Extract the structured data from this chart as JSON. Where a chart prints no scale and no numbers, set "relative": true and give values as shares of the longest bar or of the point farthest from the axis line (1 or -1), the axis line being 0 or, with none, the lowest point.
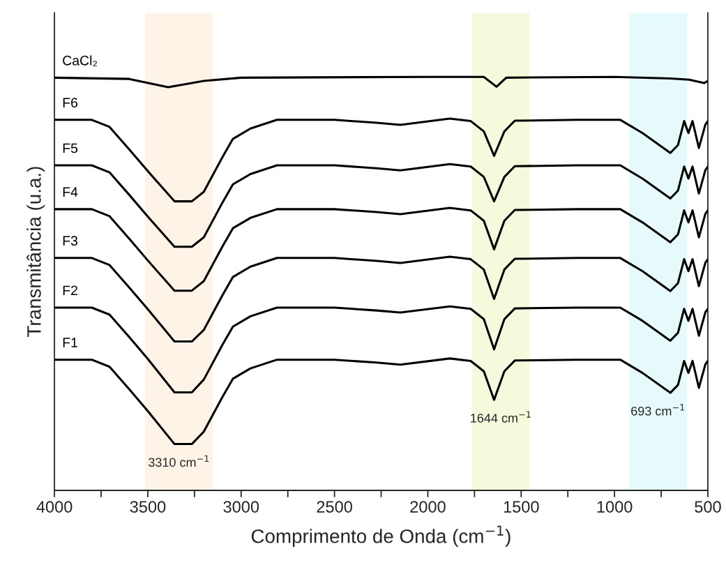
{
  "chart_data": {
    "type": "line",
    "relative": true,
    "xlabel": "Comprimento de Onda (cm$^{−1}$)",
    "ylabel": "Transmitância (u.a.)",
    "xlim": [
      4000,
      500
    ],
    "xticks": [
      4000,
      {
        "value": 3750,
        "label": null
      },
      3500,
      {
        "value": 3250,
        "label": null
      },
      3000,
      {
        "value": 2750,
        "label": null
      },
      2500,
      {
        "value": 2250,
        "label": null
      },
      2000,
      {
        "value": 1750,
        "label": null
      },
      1500,
      {
        "value": 1250,
        "label": null
      },
      1000,
      {
        "value": 750,
        "label": null
      },
      500
    ],
    "legend": false,
    "grid": false,
    "marker": "none",
    "line_style": "solid",
    "tick_labels": "x",
    "bands": [
      {
        "axis": "x",
        "from": 3514,
        "to": 3152,
        "color": "#fdf3e7",
        "label": "3310 cm$^{−1}$"
      },
      {
        "axis": "x",
        "from": 1762,
        "to": 1456,
        "color": "#f3fbdc",
        "label": "1644 cm$^{−1}$"
      },
      {
        "axis": "x",
        "from": 922,
        "to": 612,
        "color": "#e6fafb",
        "label": "693 cm$^{−1}$"
      }
    ],
    "series": [
      {
        "name": "CaCl₂",
        "color": "#000000",
        "x": [
          4000,
          3600,
          3391,
          3200,
          3000,
          2000,
          1700,
          1632,
          1580,
          1000,
          700,
          600,
          520,
          500
        ],
        "values": [
          0.998,
          0.995,
          0.975,
          0.99,
          0.998,
          1.0,
          1.0,
          0.976,
          0.998,
          1.0,
          0.996,
          0.993,
          0.985,
          0.99
        ]
      },
      {
        "name": "F6",
        "color": "#000000",
        "x": [
          4000,
          3800,
          3705,
          3600,
          3500,
          3357,
          3264,
          3200,
          3100,
          3044,
          2950,
          2808,
          2500,
          2274,
          2147,
          1882,
          1770,
          1700,
          1645,
          1590,
          1534,
          1200,
          969,
          850,
          701,
          660,
          627,
          604,
          582,
          548,
          513,
          500
        ],
        "values": [
          0.896,
          0.896,
          0.879,
          0.825,
          0.772,
          0.699,
          0.699,
          0.722,
          0.806,
          0.85,
          0.875,
          0.896,
          0.896,
          0.889,
          0.884,
          0.899,
          0.893,
          0.868,
          0.809,
          0.868,
          0.894,
          0.896,
          0.896,
          0.864,
          0.816,
          0.835,
          0.893,
          0.864,
          0.893,
          0.828,
          0.885,
          0.893
        ]
      },
      {
        "name": "F5",
        "color": "#000000",
        "x": [
          4000,
          3800,
          3705,
          3600,
          3500,
          3357,
          3264,
          3200,
          3100,
          3044,
          2950,
          2808,
          2500,
          2274,
          2147,
          1882,
          1770,
          1700,
          1645,
          1590,
          1534,
          1200,
          969,
          850,
          701,
          660,
          627,
          604,
          582,
          548,
          513,
          500
        ],
        "values": [
          0.786,
          0.786,
          0.769,
          0.715,
          0.662,
          0.589,
          0.589,
          0.612,
          0.696,
          0.74,
          0.765,
          0.786,
          0.786,
          0.779,
          0.774,
          0.789,
          0.783,
          0.758,
          0.699,
          0.758,
          0.784,
          0.786,
          0.786,
          0.754,
          0.706,
          0.725,
          0.783,
          0.754,
          0.783,
          0.718,
          0.775,
          0.783
        ]
      },
      {
        "name": "F4",
        "color": "#000000",
        "x": [
          4000,
          3800,
          3705,
          3600,
          3500,
          3357,
          3264,
          3200,
          3100,
          3044,
          2950,
          2808,
          2500,
          2274,
          2147,
          1882,
          1770,
          1700,
          1645,
          1590,
          1534,
          1200,
          969,
          850,
          701,
          660,
          627,
          604,
          582,
          548,
          513,
          500
        ],
        "values": [
          0.68,
          0.68,
          0.663,
          0.609,
          0.556,
          0.483,
          0.483,
          0.506,
          0.59,
          0.634,
          0.659,
          0.68,
          0.68,
          0.673,
          0.668,
          0.683,
          0.677,
          0.652,
          0.583,
          0.652,
          0.678,
          0.68,
          0.68,
          0.648,
          0.6,
          0.619,
          0.677,
          0.648,
          0.677,
          0.612,
          0.669,
          0.677
        ]
      },
      {
        "name": "F3",
        "color": "#000000",
        "x": [
          4000,
          3800,
          3705,
          3600,
          3500,
          3357,
          3264,
          3200,
          3100,
          3044,
          2950,
          2808,
          2500,
          2274,
          2147,
          1882,
          1770,
          1700,
          1645,
          1590,
          1534,
          1200,
          969,
          850,
          701,
          660,
          627,
          604,
          582,
          548,
          513,
          500
        ],
        "values": [
          0.562,
          0.562,
          0.545,
          0.491,
          0.438,
          0.36,
          0.36,
          0.388,
          0.472,
          0.516,
          0.541,
          0.562,
          0.562,
          0.555,
          0.55,
          0.565,
          0.559,
          0.534,
          0.463,
          0.534,
          0.56,
          0.562,
          0.562,
          0.53,
          0.482,
          0.501,
          0.559,
          0.53,
          0.559,
          0.494,
          0.551,
          0.559
        ]
      },
      {
        "name": "F2",
        "color": "#000000",
        "x": [
          4000,
          3800,
          3705,
          3600,
          3500,
          3357,
          3264,
          3200,
          3100,
          3044,
          2950,
          2808,
          2500,
          2274,
          2147,
          1882,
          1770,
          1700,
          1645,
          1590,
          1534,
          1200,
          969,
          850,
          701,
          660,
          627,
          604,
          582,
          548,
          513,
          500
        ],
        "values": [
          0.442,
          0.442,
          0.425,
          0.371,
          0.318,
          0.237,
          0.237,
          0.268,
          0.352,
          0.396,
          0.421,
          0.442,
          0.442,
          0.435,
          0.43,
          0.445,
          0.439,
          0.414,
          0.341,
          0.414,
          0.44,
          0.442,
          0.442,
          0.41,
          0.362,
          0.381,
          0.439,
          0.41,
          0.439,
          0.374,
          0.431,
          0.439
        ]
      },
      {
        "name": "F1",
        "color": "#000000",
        "x": [
          4000,
          3800,
          3705,
          3600,
          3500,
          3357,
          3264,
          3200,
          3100,
          3044,
          2950,
          2808,
          2500,
          2274,
          2147,
          1882,
          1770,
          1700,
          1645,
          1590,
          1534,
          1200,
          969,
          850,
          701,
          660,
          627,
          604,
          582,
          548,
          513,
          500
        ],
        "values": [
          0.316,
          0.316,
          0.299,
          0.245,
          0.192,
          0.112,
          0.112,
          0.142,
          0.226,
          0.27,
          0.295,
          0.316,
          0.316,
          0.309,
          0.304,
          0.319,
          0.313,
          0.288,
          0.219,
          0.288,
          0.314,
          0.316,
          0.316,
          0.284,
          0.236,
          0.255,
          0.313,
          0.284,
          0.313,
          0.248,
          0.305,
          0.313
        ]
      }
    ]
  }
}
